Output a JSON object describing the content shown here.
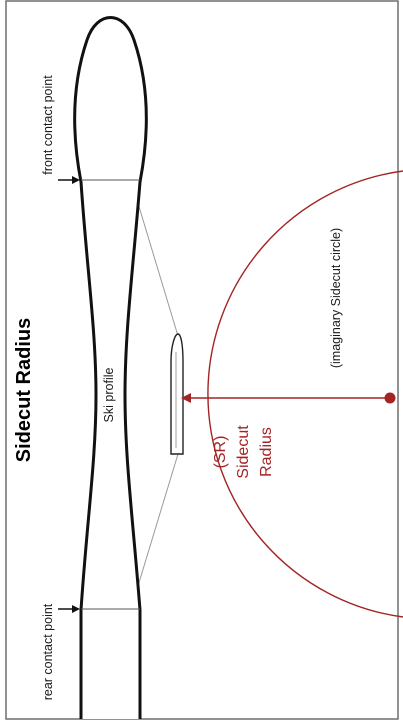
{
  "diagram": {
    "title": "Sidecut Radius",
    "ski_profile_label": "Ski profile",
    "front_contact_label": "front contact point",
    "rear_contact_label": "rear contact point",
    "circle_label": "(imaginary Sidecut circle)",
    "radius_label_line1": "(SR)",
    "radius_label_line2": "Sidecut",
    "radius_label_line3": "Radius",
    "colors": {
      "ink": "#1a1a1a",
      "accent": "#a32424",
      "guide": "#9a9a9a"
    }
  }
}
